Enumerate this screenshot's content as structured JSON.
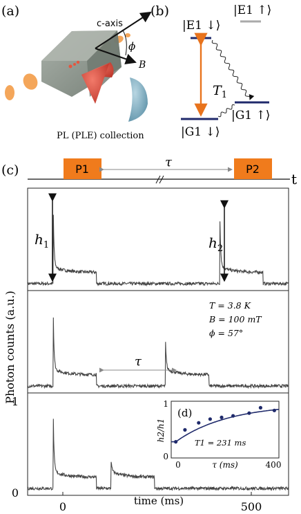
{
  "panel_a": {
    "label": "(a)",
    "c_axis": "c-axis",
    "phi": "ϕ",
    "b": "B",
    "collection": "PL (PLE) collection"
  },
  "panel_b": {
    "label": "(b)",
    "e1_down": "|E1 ↓⟩",
    "e1_up": "|E1 ↑⟩",
    "g1_up": "|G1 ↑⟩",
    "g1_down": "|G1 ↓⟩",
    "t1": "T",
    "t1_sub": "1"
  },
  "panel_c": {
    "label": "(c)",
    "pulse1": "P1",
    "pulse2": "P2",
    "tau": "τ",
    "t_axis": "t",
    "h1": "h",
    "h1_sub": "1",
    "h2": "h",
    "h2_sub": "2",
    "params": {
      "temperature": "T = 3.8 K",
      "field": "B = 100 mT",
      "angle": "ϕ = 57°"
    },
    "ylabel": "Photon counts (a.u.)",
    "xlabel": "time (ms)",
    "y_ticks": [
      "0",
      "1"
    ],
    "x_ticks": [
      "0",
      "500"
    ]
  },
  "panel_d": {
    "label": "(d)",
    "ylabel": "h2/h1",
    "xlabel": "τ (ms)",
    "t1_text": "T1 = 231 ms",
    "y_ticks": [
      "0",
      "1"
    ],
    "x_ticks": [
      "0",
      "400"
    ]
  },
  "chart_data": [
    {
      "type": "line",
      "panel": "c-top",
      "x_range": [
        -70,
        650
      ],
      "pulses": [
        {
          "start": 0,
          "end": 120
        },
        {
          "start": 460,
          "end": 580
        }
      ],
      "peak_heights": [
        1.0,
        0.82
      ]
    },
    {
      "type": "line",
      "panel": "c-middle",
      "x_range": [
        -70,
        650
      ],
      "pulses": [
        {
          "start": 0,
          "end": 120
        },
        {
          "start": 310,
          "end": 430
        }
      ],
      "peak_heights": [
        1.0,
        0.47
      ]
    },
    {
      "type": "line",
      "panel": "c-bottom",
      "x_range": [
        -70,
        650
      ],
      "ylim": [
        0,
        1
      ],
      "pulses": [
        {
          "start": 0,
          "end": 120
        },
        {
          "start": 160,
          "end": 280
        }
      ],
      "peak_heights": [
        1.0,
        0.22
      ]
    },
    {
      "type": "scatter",
      "panel": "d",
      "x": [
        0,
        40,
        100,
        150,
        200,
        250,
        320,
        370,
        430
      ],
      "y": [
        0.3,
        0.52,
        0.65,
        0.72,
        0.75,
        0.78,
        0.83,
        0.93,
        0.88
      ],
      "fit": "h2/h1 = 1 - 0.7 * exp(-tau/231)",
      "xlim": [
        -20,
        450
      ],
      "ylim": [
        0,
        1.05
      ]
    }
  ]
}
